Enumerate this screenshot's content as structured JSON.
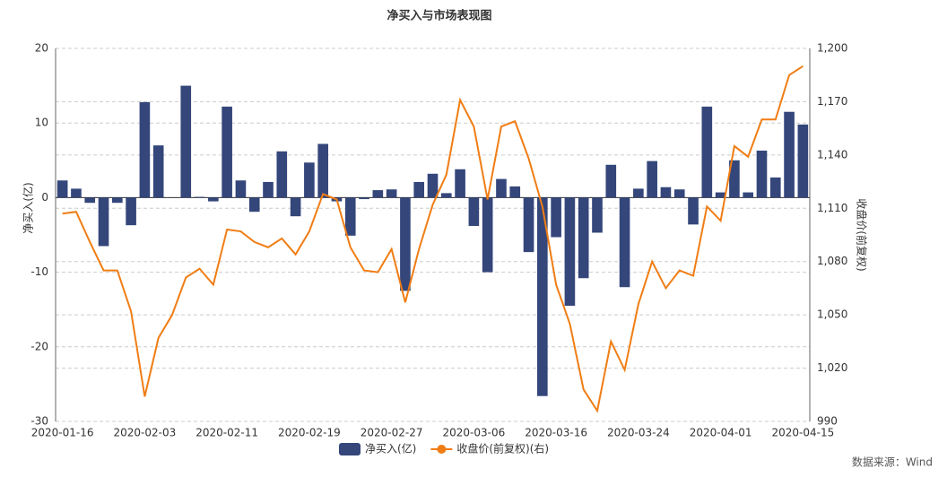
{
  "chart_data": {
    "type": "bar-line",
    "title": "净买入与市场表现图",
    "ylabel": "净买入(亿)",
    "y2label": "收盘价(前复权)",
    "source": "数据来源：Wind",
    "categories": [
      "2020-01-16",
      null,
      null,
      null,
      null,
      null,
      "2020-02-03",
      null,
      null,
      null,
      null,
      null,
      "2020-02-11",
      null,
      null,
      null,
      null,
      null,
      "2020-02-19",
      null,
      null,
      null,
      null,
      null,
      "2020-02-27",
      null,
      null,
      null,
      null,
      null,
      "2020-03-06",
      null,
      null,
      null,
      null,
      null,
      "2020-03-16",
      null,
      null,
      null,
      null,
      null,
      "2020-03-24",
      null,
      null,
      null,
      null,
      null,
      "2020-04-01",
      null,
      null,
      null,
      null,
      null,
      "2020-04-15"
    ],
    "series": [
      {
        "name": "净买入(亿)",
        "type": "bar",
        "color": "#34467a",
        "values": [
          2.3,
          1.2,
          -0.7,
          -6.5,
          -0.7,
          -3.7,
          12.8,
          7.0,
          0,
          15.0,
          0.1,
          -0.5,
          12.2,
          2.3,
          -1.9,
          2.1,
          6.2,
          -2.5,
          4.7,
          7.2,
          -0.5,
          -5.1,
          -0.2,
          1.0,
          1.1,
          -12.5,
          2.1,
          3.2,
          0.6,
          3.8,
          -3.8,
          -10,
          2.5,
          1.5,
          -7.3,
          -26.6,
          -5.3,
          -14.5,
          -10.8,
          -4.7,
          4.4,
          -12,
          1.2,
          4.9,
          1.4,
          1.1,
          -3.6,
          12.2,
          0.7,
          5.0,
          0.7,
          6.3,
          2.7,
          11.5,
          9.8
        ]
      },
      {
        "name": "收盘价(前复权)(右)",
        "type": "line",
        "axis": "y2",
        "color": "#f07d14",
        "values": [
          1107,
          1108,
          1091,
          1075,
          1075,
          1052,
          1004,
          1037,
          1050,
          1071,
          1076,
          1067,
          1098,
          1097,
          1091,
          1088,
          1093,
          1084,
          1097,
          1118,
          1115,
          1088,
          1075,
          1074,
          1087,
          1057,
          1087,
          1112,
          1129,
          1171,
          1156,
          1115,
          1156,
          1159,
          1138,
          1111,
          1067,
          1045,
          1008,
          996,
          1035,
          1019,
          1056,
          1080,
          1065,
          1075,
          1072,
          1111,
          1103,
          1145,
          1139,
          1160,
          1160,
          1185,
          1190
        ]
      }
    ],
    "ylim": [
      -30,
      20
    ],
    "yticks": [
      -30,
      -20,
      -10,
      0,
      10,
      20
    ],
    "y2lim": [
      990,
      1200
    ],
    "y2ticks": [
      990,
      {
        "value": 1020,
        "label": "1,020"
      },
      {
        "value": 1050,
        "label": "1,050"
      },
      {
        "value": 1080,
        "label": "1,080"
      },
      {
        "value": 1110,
        "label": "1,110"
      },
      {
        "value": 1140,
        "label": "1,140"
      },
      {
        "value": 1170,
        "label": "1,170"
      },
      {
        "value": 1200,
        "label": "1,200"
      }
    ],
    "grid": true,
    "legend": "bottom"
  }
}
